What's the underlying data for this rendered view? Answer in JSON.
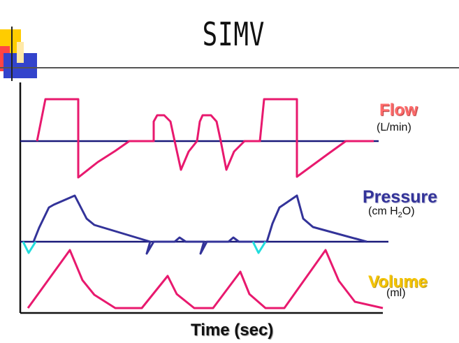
{
  "title": "SIMV",
  "labels": {
    "flow": "Flow",
    "flow_unit": "(L/min)",
    "pressure": "Pressure",
    "pressure_unit_pre": "(cm H",
    "pressure_unit_sub": "2",
    "pressure_unit_post": "O)",
    "volume": "Volume",
    "volume_unit": "(ml)",
    "time": "Time (sec)"
  },
  "colors": {
    "flow_trace": "#e8196e",
    "pressure_trace": "#333399",
    "volume_trace": "#e8196e",
    "spontaneous_trigger": "#22dddd",
    "axis": "#111111",
    "baseline": "#1a1a7a",
    "flow_label": "#ff6b6b",
    "pressure_label": "#333399",
    "volume_label": "#f5c400"
  }
}
